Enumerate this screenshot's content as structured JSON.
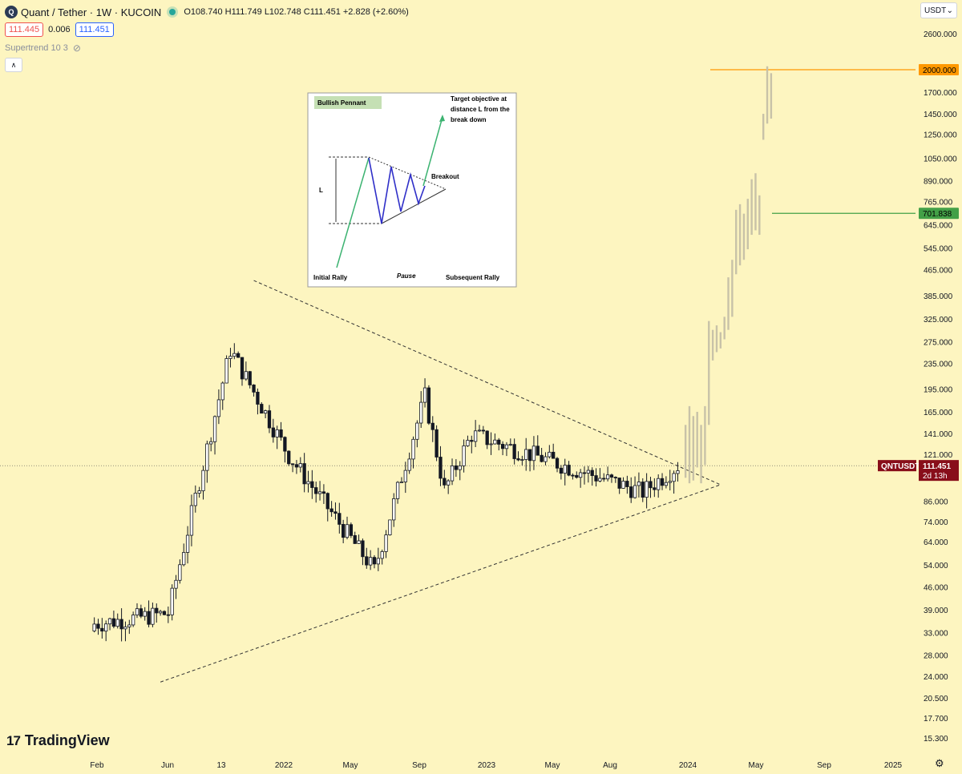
{
  "header": {
    "title": "Quant / Tether · 1W · KUCOIN",
    "ohlc": "O108.740 H111.749 L102.748 C111.451 +2.828 (+2.60%)",
    "sell_price": "111.445",
    "spread": "0.006",
    "buy_price": "111.451",
    "indicator": "Supertrend 10 3",
    "currency": "USDT",
    "brand": "TradingView",
    "brand_mark": "17",
    "icons": [
      "logo-badge-icon",
      "live-dot-icon",
      "eye-off-icon",
      "chevron-down-icon",
      "collapse-icon",
      "gear-icon"
    ]
  },
  "inset": {
    "title": "Bullish Pennant",
    "target_text": [
      "Target objective at",
      "distance L from the",
      "break down"
    ],
    "breakout": "Breakout",
    "L_label": "L",
    "initial": "Initial Rally",
    "pause": "Pause",
    "subsequent": "Subsequent Rally"
  },
  "chart_data": {
    "type": "candlestick",
    "symbol": "QNTUSDT",
    "scale": "log",
    "y_ticks": [
      "2600.000",
      "2000.000",
      "1700.000",
      "1450.000",
      "1250.000",
      "1050.000",
      "890.000",
      "765.000",
      "645.000",
      "545.000",
      "465.000",
      "385.000",
      "325.000",
      "275.000",
      "235.000",
      "195.000",
      "165.000",
      "141.000",
      "121.000",
      "86.000",
      "74.000",
      "64.000",
      "54.000",
      "46.000",
      "39.000",
      "33.000",
      "28.000",
      "24.000",
      "20.500",
      "17.700",
      "15.300"
    ],
    "x_ticks": [
      "Feb",
      "Jun",
      "13",
      "2022",
      "May",
      "Sep",
      "2023",
      "May",
      "Aug",
      "2024",
      "May",
      "Sep",
      "2025"
    ],
    "last_price": "111.451",
    "countdown": "2d 13h",
    "target_levels": [
      {
        "value": "2000.000",
        "color": "#ff9800"
      },
      {
        "value": "701.838",
        "color": "#43a047"
      }
    ],
    "colors": {
      "up": "#ffffff",
      "down": "#131722",
      "projection": "#c8c2a8",
      "triangle": "#333333",
      "current": "#880e1a"
    },
    "segments": [
      {
        "start": "2021-01-25",
        "end": "2021-06-14",
        "from": 35,
        "to": 38
      },
      {
        "start": "2021-06-14",
        "end": "2021-10-04",
        "from": 38,
        "to": 260
      },
      {
        "start": "2021-10-04",
        "end": "2022-01-17",
        "from": 260,
        "to": 120
      },
      {
        "start": "2022-01-17",
        "end": "2022-06-20",
        "from": 120,
        "to": 52
      },
      {
        "start": "2022-06-20",
        "end": "2022-09-19",
        "from": 52,
        "to": 185
      },
      {
        "start": "2022-09-19",
        "end": "2022-10-24",
        "from": 185,
        "to": 93
      },
      {
        "start": "2022-10-24",
        "end": "2022-12-12",
        "from": 93,
        "to": 140
      },
      {
        "start": "2022-12-12",
        "end": "2023-10-16",
        "from": 140,
        "to": 92
      },
      {
        "start": "2023-10-16",
        "end": "2023-12-18",
        "from": 92,
        "to": 111.451
      }
    ],
    "projection_bars": [
      [
        102,
        150
      ],
      [
        98,
        172
      ],
      [
        100,
        160
      ],
      [
        110,
        165
      ],
      [
        98,
        150
      ],
      [
        112,
        172
      ],
      [
        150,
        320
      ],
      [
        240,
        300
      ],
      [
        255,
        310
      ],
      [
        262,
        295
      ],
      [
        280,
        330
      ],
      [
        300,
        440
      ],
      [
        330,
        500
      ],
      [
        450,
        720
      ],
      [
        480,
        750
      ],
      [
        500,
        700
      ],
      [
        540,
        780
      ],
      [
        600,
        900
      ],
      [
        620,
        940
      ],
      [
        600,
        800
      ],
      [
        1200,
        1450
      ],
      [
        1350,
        2050
      ],
      [
        1400,
        1950
      ]
    ],
    "triangle": {
      "upper": [
        [
          "2021-11-08",
          430
        ],
        [
          "2024-02-26",
          97
        ]
      ],
      "lower": [
        [
          "2021-05-24",
          23
        ],
        [
          "2024-02-26",
          97
        ]
      ],
      "apex": [
        "2024-02-26",
        97
      ]
    }
  }
}
